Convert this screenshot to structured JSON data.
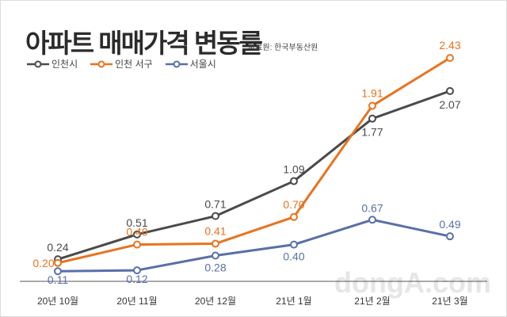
{
  "title": "아파트 매매가격 변동률",
  "source": "자료원: 한국부동산원",
  "watermark": "dongA.com",
  "chart_data": {
    "type": "line",
    "title": "아파트 매매가격 변동률",
    "categories": [
      "20년 10월",
      "20년 11월",
      "20년 12월",
      "21년 1월",
      "21년 2월",
      "21년 3월"
    ],
    "series": [
      {
        "name": "인천시",
        "color": "#4a4a4a",
        "values": [
          0.24,
          0.51,
          0.71,
          1.09,
          1.77,
          2.07
        ],
        "labels": [
          "0.24",
          "0.51",
          "0.71",
          "1.09",
          "1.77",
          "2.07"
        ]
      },
      {
        "name": "인천 서구",
        "color": "#e8731e",
        "values": [
          0.2,
          0.4,
          0.41,
          0.7,
          1.91,
          2.43
        ],
        "labels": [
          "0.20",
          "0.40",
          "0.41",
          "0.70",
          "1.91",
          "2.43"
        ]
      },
      {
        "name": "서울시",
        "color": "#5a6fa8",
        "values": [
          0.11,
          0.12,
          0.28,
          0.4,
          0.67,
          0.49
        ],
        "labels": [
          "0.11",
          "0.12",
          "0.28",
          "0.40",
          "0.67",
          "0.49"
        ]
      }
    ],
    "ylim": [
      0,
      2.6
    ],
    "grid": false,
    "legend": "top-left",
    "xlabel": "",
    "ylabel": ""
  }
}
